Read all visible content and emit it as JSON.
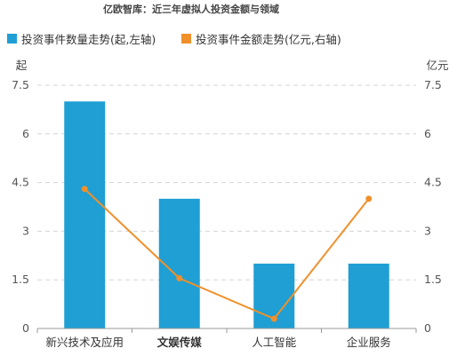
{
  "chart_data": {
    "type": "bar",
    "title": "亿欧智库：近三年虚拟人投资金额与领域",
    "categories": [
      "新兴技术及应用",
      "文娱传媒",
      "人工智能",
      "企业服务"
    ],
    "series": [
      {
        "name": "投资事件数量走势(起,左轴)",
        "type": "bar",
        "axis": "left",
        "color": "#1f9fd4",
        "values": [
          7,
          4,
          2,
          2
        ]
      },
      {
        "name": "投资事件金额走势(亿元,右轴)",
        "type": "line",
        "axis": "right",
        "color": "#f0902a",
        "values": [
          4.3,
          1.55,
          0.3,
          4.0
        ]
      }
    ],
    "left_axis": {
      "unit": "起",
      "ylim": [
        0,
        7.5
      ],
      "ticks": [
        "0",
        "1.5",
        "3",
        "4.5",
        "6",
        "7.5"
      ]
    },
    "right_axis": {
      "unit": "亿元",
      "ylim": [
        0,
        7.5
      ],
      "ticks": [
        "0",
        "1.5",
        "3",
        "4.5",
        "6",
        "7.5"
      ]
    },
    "grid": true,
    "legend_position": "top-left"
  }
}
